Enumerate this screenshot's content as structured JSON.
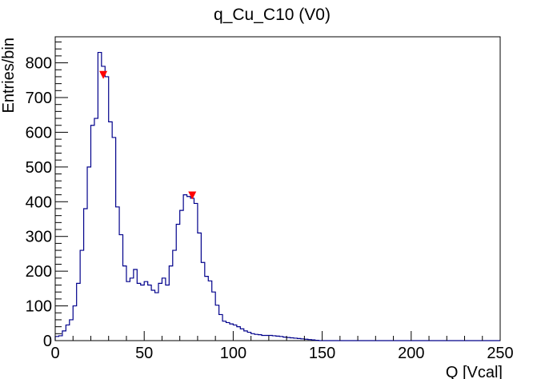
{
  "chart_data": {
    "type": "histogram",
    "title": "q_Cu_C10 (V0)",
    "xlabel": "Q [Vcal]",
    "ylabel": "Entries/bin",
    "xlim": [
      0,
      250
    ],
    "ylim": [
      0,
      875
    ],
    "x_ticks": [
      0,
      50,
      100,
      150,
      200,
      250
    ],
    "y_ticks": [
      0,
      100,
      200,
      300,
      400,
      500,
      600,
      700,
      800
    ],
    "bin_width": 2,
    "grid": false,
    "series": [
      {
        "line_color": "#00008b",
        "x": [
          0,
          2,
          4,
          6,
          8,
          10,
          12,
          14,
          16,
          18,
          20,
          22,
          24,
          26,
          28,
          30,
          32,
          34,
          36,
          38,
          40,
          42,
          44,
          46,
          48,
          50,
          52,
          54,
          56,
          58,
          60,
          62,
          64,
          66,
          68,
          70,
          72,
          74,
          76,
          78,
          80,
          82,
          84,
          86,
          88,
          90,
          92,
          94,
          96,
          98,
          100,
          102,
          104,
          106,
          108,
          110,
          112,
          114,
          116,
          118,
          120,
          122,
          124,
          126,
          128,
          130,
          132,
          134,
          136,
          138,
          140,
          142,
          144,
          146,
          148,
          150,
          152,
          154,
          156,
          158,
          160,
          162,
          164,
          166,
          168,
          170,
          172,
          174,
          176,
          178,
          180,
          182,
          184,
          186,
          188,
          190,
          192,
          194,
          196,
          198,
          200,
          202,
          204,
          206,
          208,
          210,
          212,
          214,
          216,
          218,
          220,
          222,
          224,
          226,
          228,
          230,
          232,
          234,
          236,
          238,
          240,
          242,
          244,
          246,
          248
        ],
        "values": [
          12,
          14,
          28,
          45,
          60,
          100,
          165,
          260,
          380,
          500,
          620,
          640,
          830,
          790,
          760,
          630,
          585,
          385,
          305,
          215,
          170,
          180,
          205,
          165,
          160,
          170,
          160,
          145,
          138,
          165,
          180,
          160,
          215,
          260,
          335,
          375,
          420,
          415,
          410,
          395,
          310,
          225,
          185,
          172,
          140,
          102,
          75,
          56,
          52,
          48,
          45,
          40,
          34,
          28,
          24,
          20,
          18,
          17,
          15,
          15,
          15,
          14,
          13,
          12,
          10,
          9,
          8,
          7,
          6,
          5,
          4,
          3,
          2,
          1,
          0,
          0,
          0,
          0,
          0,
          0,
          0,
          0,
          0,
          0,
          0,
          0,
          0,
          0,
          0,
          0,
          0,
          0,
          0,
          0,
          0,
          0,
          0,
          0,
          0,
          0,
          0,
          0,
          0,
          0,
          0,
          0,
          0,
          0,
          0,
          0,
          0,
          0,
          0,
          0,
          0,
          0,
          0,
          0,
          0,
          0,
          0,
          0,
          0,
          0,
          0
        ]
      }
    ],
    "markers": [
      {
        "x": 27,
        "y": 765,
        "shape": "triangle-down",
        "color": "#ff0000"
      },
      {
        "x": 77,
        "y": 418,
        "shape": "triangle-down",
        "color": "#ff0000"
      }
    ]
  }
}
